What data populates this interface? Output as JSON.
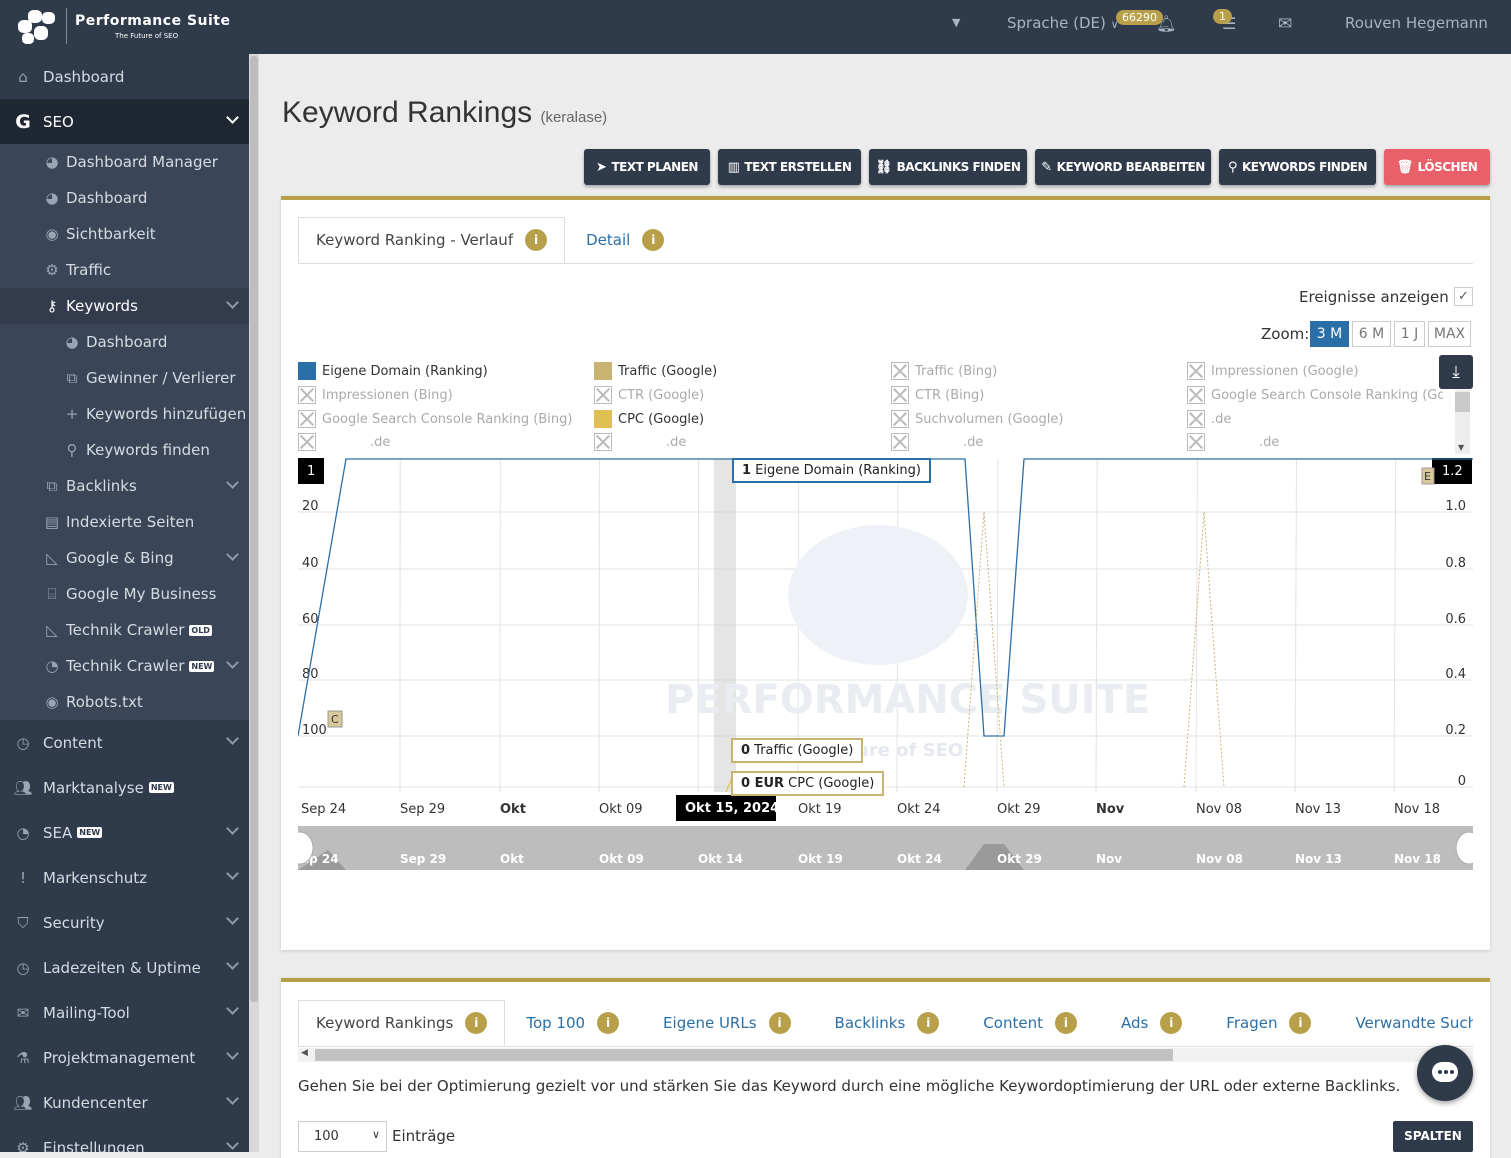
{
  "app": {
    "brand": "Performance Suite",
    "tagline": "The Future of SEO"
  },
  "topbar": {
    "language": "Sprache (DE)",
    "notifications_count": "66290",
    "tasks_count": "1",
    "user": "Rouven Hegemann"
  },
  "sidebar": {
    "items": [
      {
        "label": "Dashboard",
        "icon": "home-icon"
      },
      {
        "label": "SEO",
        "icon": "google-g-icon"
      }
    ],
    "seo_sub": [
      {
        "label": "Dashboard Manager",
        "icon": "palette-icon"
      },
      {
        "label": "Dashboard",
        "icon": "palette-icon"
      },
      {
        "label": "Sichtbarkeit",
        "icon": "eye-icon"
      },
      {
        "label": "Traffic",
        "icon": "cogs-icon"
      },
      {
        "label": "Keywords",
        "icon": "key-icon"
      }
    ],
    "keywords_sub": [
      {
        "label": "Dashboard",
        "icon": "palette-icon"
      },
      {
        "label": "Gewinner / Verlierer",
        "icon": "external-link-icon"
      },
      {
        "label": "Keywords hinzufügen",
        "icon": "plus-icon"
      },
      {
        "label": "Keywords finden",
        "icon": "search-icon"
      }
    ],
    "seo_sub2": [
      {
        "label": "Backlinks",
        "icon": "external-link-icon"
      },
      {
        "label": "Indexierte Seiten",
        "icon": "file-icon"
      },
      {
        "label": "Google & Bing",
        "icon": "area-chart-icon"
      },
      {
        "label": "Google My Business",
        "icon": "store-icon"
      },
      {
        "label": "Technik Crawler",
        "icon": "area-chart-icon",
        "tag": "OLD"
      },
      {
        "label": "Technik Crawler",
        "icon": "pie-chart-icon",
        "tag": "NEW"
      },
      {
        "label": "Robots.txt",
        "icon": "eye-icon"
      }
    ],
    "main2": [
      {
        "label": "Content",
        "icon": "clock-icon"
      },
      {
        "label": "Marktanalyse",
        "icon": "users-icon",
        "tag": "NEW"
      },
      {
        "label": "SEA",
        "icon": "pie-chart-icon",
        "tag": "NEW"
      },
      {
        "label": "Markenschutz",
        "icon": "exclamation-icon"
      },
      {
        "label": "Security",
        "icon": "shield-icon"
      },
      {
        "label": "Ladezeiten & Uptime",
        "icon": "clock-icon"
      },
      {
        "label": "Mailing-Tool",
        "icon": "envelope-icon"
      },
      {
        "label": "Projektmanagement",
        "icon": "flask-icon"
      },
      {
        "label": "Kundencenter",
        "icon": "users-icon"
      },
      {
        "label": "Einstellungen",
        "icon": "cog-icon"
      }
    ]
  },
  "page": {
    "title": "Keyword Rankings",
    "subtitle": "(keralase)"
  },
  "actions": [
    {
      "label": "TEXT PLANEN",
      "icon": "paper-plane-icon"
    },
    {
      "label": "TEXT ERSTELLEN",
      "icon": "book-icon"
    },
    {
      "label": "BACKLINKS FINDEN",
      "icon": "link-icon"
    },
    {
      "label": "KEYWORD BEARBEITEN",
      "icon": "edit-icon"
    },
    {
      "label": "KEYWORDS FINDEN",
      "icon": "search-icon"
    },
    {
      "label": "LÖSCHEN",
      "icon": "trash-icon"
    }
  ],
  "chart_tabs": [
    "Keyword Ranking - Verlauf",
    "Detail"
  ],
  "events_label": "Ereignisse anzeigen",
  "zoom": {
    "label": "Zoom:",
    "options": [
      "3 M",
      "6 M",
      "1 J",
      "MAX"
    ],
    "selected": "3 M"
  },
  "legend": [
    {
      "label": "Eigene Domain (Ranking)",
      "color": "#2a6fa8",
      "on": true
    },
    {
      "label": "Traffic (Google)",
      "color": "#c8b470",
      "on": true
    },
    {
      "label": "Traffic (Bing)",
      "on": false
    },
    {
      "label": "Impressionen (Google)",
      "on": false
    },
    {
      "label": "Impressionen (Bing)",
      "on": false
    },
    {
      "label": "CTR (Google)",
      "on": false
    },
    {
      "label": "CTR (Bing)",
      "on": false
    },
    {
      "label": "Google Search Console Ranking (Googl",
      "on": false
    },
    {
      "label": "Google Search Console Ranking (Bing)",
      "on": false
    },
    {
      "label": "CPC (Google)",
      "color": "#e0c050",
      "on": true
    },
    {
      "label": "Suchvolumen (Google)",
      "on": false
    },
    {
      "label": ".de",
      "on": false
    },
    {
      "label": ".de",
      "on": false
    },
    {
      "label": ".de",
      "on": false
    },
    {
      "label": ".de",
      "on": false
    },
    {
      "label": ".de",
      "on": false
    }
  ],
  "chart_data": {
    "type": "line",
    "x_labels": [
      "Sep 24",
      "Sep 29",
      "Okt",
      "Okt 09",
      "Okt 14",
      "Okt 19",
      "Okt 24",
      "Okt 29",
      "Nov",
      "Nov 08",
      "Nov 13",
      "Nov 18"
    ],
    "y_left": {
      "ticks": [
        "1",
        "20",
        "40",
        "60",
        "80",
        "100"
      ],
      "reversed": true
    },
    "y_right": {
      "ticks": [
        "1.2",
        "1.0",
        "0.8",
        "0.6",
        "0.4",
        "0.2",
        "0"
      ]
    },
    "series": [
      {
        "name": "Eigene Domain (Ranking)",
        "points": [
          [
            "Sep 24",
            100
          ],
          [
            "Sep 25",
            1
          ],
          [
            "Okt 28",
            1
          ],
          [
            "Okt 28.5",
            100
          ],
          [
            "Okt 29.5",
            100
          ],
          [
            "Okt 30",
            1
          ],
          [
            "Nov 20",
            1
          ]
        ]
      },
      {
        "name": "Traffic (Google)",
        "points": [
          [
            "Okt 29",
            0
          ],
          [
            "Okt 29.5",
            1
          ],
          [
            "Okt 30",
            0
          ],
          [
            "Nov 09",
            0
          ],
          [
            "Nov 10",
            1
          ],
          [
            "Nov 11",
            0
          ]
        ]
      },
      {
        "name": "CPC (Google)",
        "points": [
          [
            "Okt 29",
            0
          ]
        ]
      }
    ],
    "markers": {
      "left": "C",
      "right": "E"
    },
    "navigator_labels": [
      "ep 24",
      "Sep 29",
      "Okt",
      "Okt 09",
      "Okt 14",
      "Okt 19",
      "Okt 24",
      "Okt 29",
      "Nov",
      "Nov 08",
      "Nov 13",
      "Nov 18"
    ],
    "tooltip": {
      "date": "Okt 15, 2024",
      "ranking": "1",
      "ranking_label": "Eigene Domain (Ranking)",
      "traffic": "0",
      "traffic_label": "Traffic (Google)",
      "cpc": "0 EUR",
      "cpc_label": "CPC (Google)"
    },
    "watermark": "PERFORMANCE SUITE",
    "watermark_sub": "ure of SEO"
  },
  "table_tabs": [
    "Keyword Rankings",
    "Top 100",
    "Eigene URLs",
    "Backlinks",
    "Content",
    "Ads",
    "Fragen",
    "Verwandte Suchan"
  ],
  "description": "Gehen Sie bei der Optimierung gezielt vor und stärken Sie das Keyword durch eine mögliche Keywordoptimierung der URL oder externe Backlinks.",
  "entries": {
    "value": "100",
    "label": "Einträge"
  },
  "columns_button": "SPALTEN"
}
